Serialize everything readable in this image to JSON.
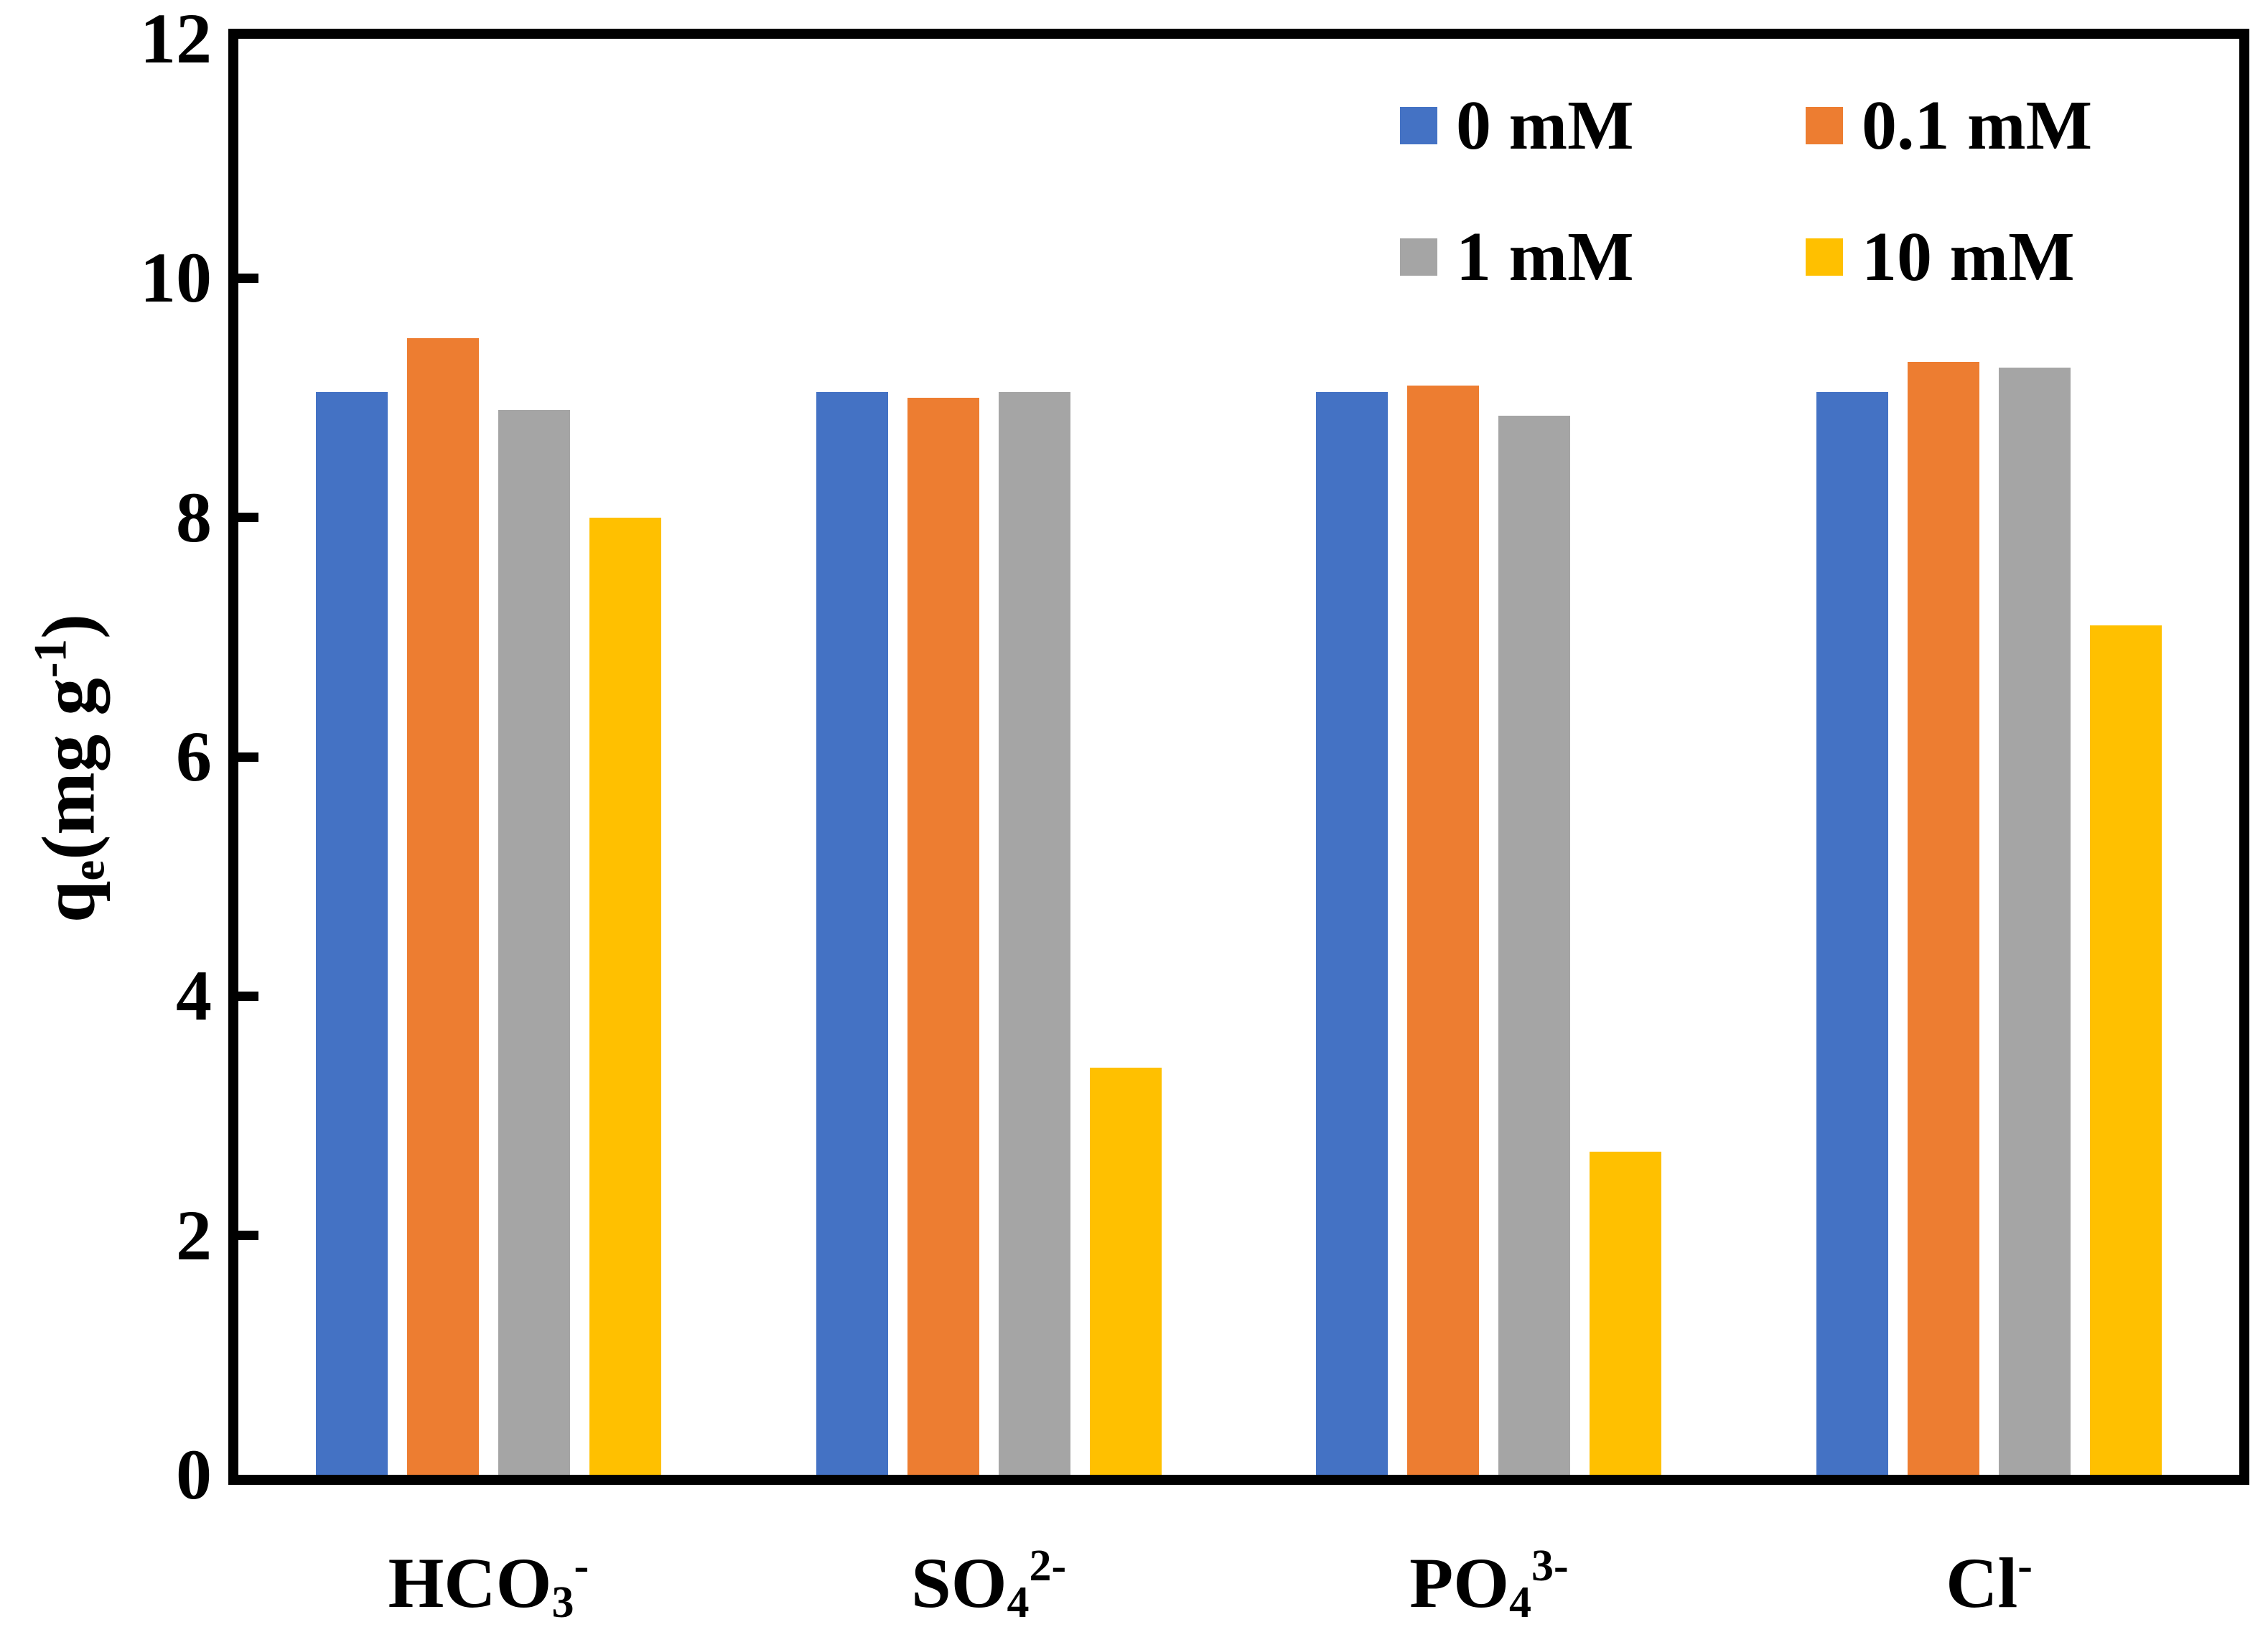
{
  "figure": {
    "background": "#ffffff",
    "axis_color": "#000000",
    "text_color": "#000000"
  },
  "chart_data": {
    "type": "bar",
    "title": "",
    "xlabel": "",
    "ylabel": "qe(mg g-1)",
    "ylabel_parts": [
      {
        "t": "q"
      },
      {
        "t": "e",
        "pos": "sub"
      },
      {
        "t": "(mg g"
      },
      {
        "t": "-1",
        "pos": "sup"
      },
      {
        "t": ")"
      }
    ],
    "ylim": [
      0,
      12
    ],
    "yticks": [
      0,
      2,
      4,
      6,
      8,
      10,
      12
    ],
    "grid": false,
    "legend_position": "inside-top-right",
    "categories": [
      "HCO3-",
      "SO4 2-",
      "PO4 3-",
      "Cl-"
    ],
    "category_parts": [
      [
        {
          "t": "HCO"
        },
        {
          "t": "3",
          "pos": "sub"
        },
        {
          "t": "-",
          "pos": "sup"
        }
      ],
      [
        {
          "t": "SO"
        },
        {
          "t": "4",
          "pos": "sub"
        },
        {
          "t": "2-",
          "pos": "sup"
        }
      ],
      [
        {
          "t": "PO"
        },
        {
          "t": "4",
          "pos": "sub"
        },
        {
          "t": "3-",
          "pos": "sup"
        }
      ],
      [
        {
          "t": "Cl"
        },
        {
          "t": "-",
          "pos": "sup"
        }
      ]
    ],
    "series": [
      {
        "name": "0 mM",
        "color": "#4472C4",
        "values": [
          9.05,
          9.05,
          9.05,
          9.05
        ]
      },
      {
        "name": "0.1 mM",
        "color": "#ED7D31",
        "values": [
          9.5,
          9.0,
          9.1,
          9.3
        ]
      },
      {
        "name": "1 mM",
        "color": "#A5A5A5",
        "values": [
          8.9,
          9.05,
          8.85,
          9.25
        ]
      },
      {
        "name": "10 mM",
        "color": "#FFC000",
        "values": [
          8.0,
          3.4,
          2.7,
          7.1
        ]
      }
    ]
  }
}
